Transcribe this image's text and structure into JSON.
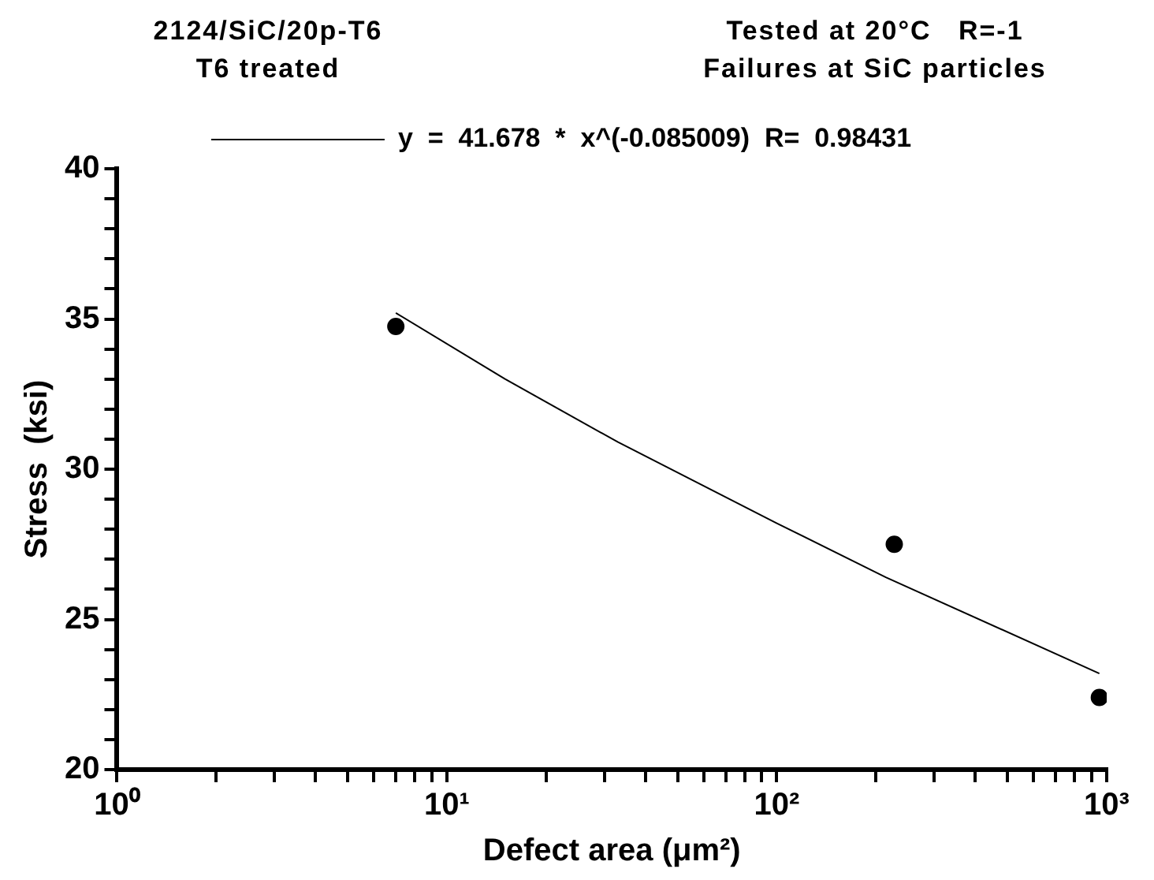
{
  "chart_data": {
    "type": "scatter",
    "title": "2124/SiC/20p-T6",
    "subtitle": "T6 treated",
    "annotations": [
      "Tested at 20°C   R=-1",
      "Failures at SiC particles"
    ],
    "xlabel": "Defect area (μm²)",
    "ylabel": "Stress  (ksi)",
    "log": "x",
    "xlim": [
      1,
      1000
    ],
    "ylim": [
      20,
      40
    ],
    "xticks": [
      {
        "value": 1,
        "label": "10⁰"
      },
      {
        "value": 2,
        "label": null
      },
      {
        "value": 3,
        "label": null
      },
      {
        "value": 4,
        "label": null
      },
      {
        "value": 5,
        "label": null
      },
      {
        "value": 6,
        "label": null
      },
      {
        "value": 7,
        "label": null
      },
      {
        "value": 8,
        "label": null
      },
      {
        "value": 9,
        "label": null
      },
      {
        "value": 10,
        "label": "10¹"
      },
      {
        "value": 20,
        "label": null
      },
      {
        "value": 30,
        "label": null
      },
      {
        "value": 40,
        "label": null
      },
      {
        "value": 50,
        "label": null
      },
      {
        "value": 60,
        "label": null
      },
      {
        "value": 70,
        "label": null
      },
      {
        "value": 80,
        "label": null
      },
      {
        "value": 90,
        "label": null
      },
      {
        "value": 100,
        "label": "10²"
      },
      {
        "value": 200,
        "label": null
      },
      {
        "value": 300,
        "label": null
      },
      {
        "value": 400,
        "label": null
      },
      {
        "value": 500,
        "label": null
      },
      {
        "value": 600,
        "label": null
      },
      {
        "value": 700,
        "label": null
      },
      {
        "value": 800,
        "label": null
      },
      {
        "value": 900,
        "label": null
      },
      {
        "value": 1000,
        "label": "10³"
      }
    ],
    "yticks": [
      20,
      {
        "value": 21,
        "label": null
      },
      {
        "value": 22,
        "label": null
      },
      {
        "value": 23,
        "label": null
      },
      {
        "value": 24,
        "label": null
      },
      25,
      {
        "value": 26,
        "label": null
      },
      {
        "value": 27,
        "label": null
      },
      {
        "value": 28,
        "label": null
      },
      {
        "value": 29,
        "label": null
      },
      30,
      {
        "value": 31,
        "label": null
      },
      {
        "value": 32,
        "label": null
      },
      {
        "value": 33,
        "label": null
      },
      {
        "value": 34,
        "label": null
      },
      35,
      {
        "value": 36,
        "label": null
      },
      {
        "value": 37,
        "label": null
      },
      {
        "value": 38,
        "label": null
      },
      {
        "value": 39,
        "label": null
      },
      40
    ],
    "grid": false,
    "legend": "top",
    "marker": "circle",
    "series": [
      {
        "color": "#000000",
        "x": [
          7,
          227,
          950
        ],
        "values": [
          34.75,
          27.5,
          22.4
        ]
      },
      {
        "type": "line",
        "name": "y  =  41.678  *  x^(-0.085009)  R=  0.98431",
        "color": "#000000",
        "marker": "none",
        "line_style": "solid",
        "x": [
          7,
          15,
          33,
          100,
          214,
          950
        ],
        "values": [
          35.2,
          33.0,
          30.9,
          28.2,
          26.4,
          23.2
        ]
      }
    ]
  }
}
